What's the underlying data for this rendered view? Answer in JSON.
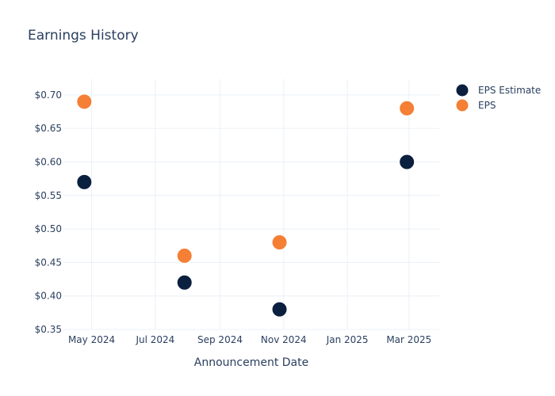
{
  "chart_data": {
    "type": "scatter",
    "title": "Earnings History",
    "xlabel": "Announcement Date",
    "ylabel": "",
    "x_ticks": [
      {
        "date": "2024-05-01",
        "label": "May 2024"
      },
      {
        "date": "2024-07-01",
        "label": "Jul 2024"
      },
      {
        "date": "2024-09-01",
        "label": "Sep 2024"
      },
      {
        "date": "2024-11-01",
        "label": "Nov 2024"
      },
      {
        "date": "2025-01-01",
        "label": "Jan 2025"
      },
      {
        "date": "2025-03-01",
        "label": "Mar 2025"
      }
    ],
    "xlim": [
      "2024-04-04",
      "2025-03-30"
    ],
    "y_ticks": [
      0.35,
      0.4,
      0.45,
      0.5,
      0.55,
      0.6,
      0.65,
      0.7
    ],
    "y_tick_labels": [
      "$0.35",
      "$0.40",
      "$0.45",
      "$0.50",
      "$0.55",
      "$0.60",
      "$0.65",
      "$0.70"
    ],
    "ylim": [
      0.35,
      0.7235
    ],
    "grid": true,
    "legend_position": "top-right",
    "series": [
      {
        "name": "EPS Estimate",
        "color": "#0b1f3f",
        "points": [
          {
            "x": "2024-04-24",
            "y": 0.57
          },
          {
            "x": "2024-07-29",
            "y": 0.42
          },
          {
            "x": "2024-10-28",
            "y": 0.38
          },
          {
            "x": "2025-02-27",
            "y": 0.6
          }
        ]
      },
      {
        "name": "EPS",
        "color": "#f47f35",
        "points": [
          {
            "x": "2024-04-24",
            "y": 0.69
          },
          {
            "x": "2024-07-29",
            "y": 0.46
          },
          {
            "x": "2024-10-28",
            "y": 0.48
          },
          {
            "x": "2025-02-27",
            "y": 0.68
          }
        ]
      }
    ]
  }
}
